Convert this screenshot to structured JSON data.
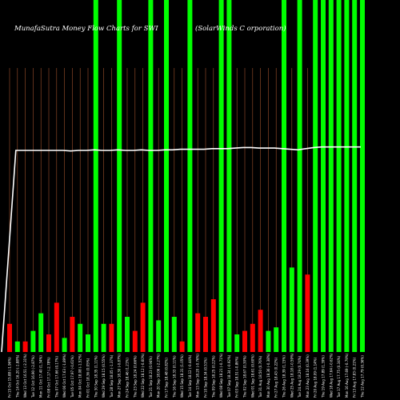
{
  "chart_data": {
    "type": "bar",
    "title_left": "MunafaSutra  Money Flow  Charts for SWI",
    "title_right": "(SolarWinds C                              orporation)",
    "colors": {
      "background": "#000000",
      "up": "#00ff00",
      "down": "#ff0000",
      "line": "#ffffff",
      "grid": "#a0522d"
    },
    "ylim": [
      0,
      100
    ],
    "categories": [
      "Fri 15 Oct 2021",
      "Thu 14 Oct 2021",
      "Wed 13 Oct 2021",
      "Tue 12 Oct 2021",
      "Mon 11 Oct 2021",
      "Fri 08 Oct 2021",
      "Thu 07 Oct 2021",
      "Wed 06 Oct 2021",
      "Tue 05 Oct 2021",
      "Mon 04 Oct 2021",
      "Fri 01 Oct 2021",
      "Thu 30 Sep 2021",
      "Wed 29 Sep 2021",
      "Tue 28 Sep 2021",
      "Mon 27 Sep 2021",
      "Fri 24 Sep 2021",
      "Thu 23 Sep 2021",
      "Wed 22 Sep 2021",
      "Tue 21 Sep 2021",
      "Mon 20 Sep 2021",
      "Fri 17 Sep 2021",
      "Thu 16 Sep 2021",
      "Wed 15 Sep 2021",
      "Tue 14 Sep 2021",
      "Mon 13 Sep 2021",
      "Fri 10 Sep 2021",
      "Thu 09 Sep 2021",
      "Wed 08 Sep 2021",
      "Tue 07 Sep 2021",
      "Fri 03 Sep 2021",
      "Thu 02 Sep 2021",
      "Wed 01 Sep 2021",
      "Tue 31 Aug 2021",
      "Mon 30 Aug 2021",
      "Fri 27 Aug 2021",
      "Thu 26 Aug 2021",
      "Wed 25 Aug 2021",
      "Tue 24 Aug 2021",
      "Mon 23 Aug 2021",
      "Fri 20 Aug 2021",
      "Thu 19 Aug 2021",
      "Wed 18 Aug 2021",
      "Tue 17 Aug 2021",
      "Mon 16 Aug 2021",
      "Fri 13 Aug 2021",
      "Thu 12 Aug 2021"
    ],
    "tick_labels": [
      "15.88 (-1.96%)",
      "16.20 (-1.88%)",
      "16.51 (-2.31%)",
      "16.90 (-2.87%)",
      "17.40 (1.34%)",
      "17.17 (-2.78%)",
      "17.66 (0.17%)",
      "17.63 (-1.89%)",
      "17.97 (-0.61%)",
      "18.08 (-1.52%)",
      "18.36 (0.05%)",
      "18.35 (1.11%)",
      "18.15 (0.55%)",
      "18.05 (-1.37%)",
      "18.30 (-0.87%)",
      "18.46 (1.21%)",
      "18.24 (0.66%)",
      "18.12 (-0.60%)",
      "18.23 (0.94%)",
      "18.06 (-2.27%)",
      "18.48 (0.82%)",
      "18.33 (0.11%)",
      "18.31 (1.05%)",
      "18.12 (-0.44%)",
      "18.20 (-0.76%)",
      "18.34 (0.51%)",
      "18.25 (0.22%)",
      "18.21 (-0.71%)",
      "18.34 (-0.92%)",
      "18.51 (-0.86%)",
      "18.67 (0.30%)",
      "18.61 (0.60%)",
      "18.50 (0.76%)",
      "18.36 (-0.38%)",
      "18.43 (0.22%)",
      "18.39 (1.15%)",
      "18.18 (-0.59%)",
      "18.29 (0.74%)",
      "18.16 (0.39%)",
      "18.09 (1.14%)",
      "17.89 (1.39%)",
      "17.64 (-0.62%)",
      "17.75 (0.34%)",
      "17.69 (-0.79%)",
      "17.83 (0.21%)",
      "17.79 (0.36%)"
    ],
    "series": [
      {
        "values": [
          8,
          3,
          3,
          6,
          11,
          5,
          14,
          4,
          10,
          8,
          5,
          100,
          8,
          8,
          100,
          10,
          6,
          14,
          100,
          9,
          100,
          10,
          3,
          100,
          11,
          10,
          15,
          100,
          100,
          5,
          6,
          8,
          12,
          6,
          7,
          100,
          24,
          100,
          22,
          100,
          100,
          100,
          100,
          100,
          100,
          100
        ],
        "directions": [
          "down",
          "up",
          "down",
          "up",
          "up",
          "down",
          "down",
          "up",
          "down",
          "up",
          "up",
          "up",
          "up",
          "down",
          "up",
          "up",
          "down",
          "down",
          "up",
          "up",
          "up",
          "up",
          "down",
          "up",
          "down",
          "down",
          "down",
          "up",
          "up",
          "up",
          "down",
          "down",
          "down",
          "up",
          "up",
          "up",
          "up",
          "up",
          "down",
          "up",
          "up",
          "up",
          "up",
          "up",
          "up",
          "up"
        ]
      }
    ],
    "line": {
      "values": [
        0,
        70,
        70,
        70,
        70,
        70,
        70,
        70,
        69.8,
        70,
        70,
        70.2,
        70,
        70,
        70.2,
        70,
        70,
        70.2,
        70,
        70,
        70.2,
        70.2,
        70.4,
        70.4,
        70.4,
        70.4,
        70.6,
        70.6,
        70.6,
        70.8,
        71,
        71,
        70.8,
        70.8,
        70.8,
        70.6,
        70.4,
        70.2,
        70.6,
        71,
        71.2,
        71.2,
        71.2,
        71.2,
        71.2,
        71.2
      ]
    }
  }
}
